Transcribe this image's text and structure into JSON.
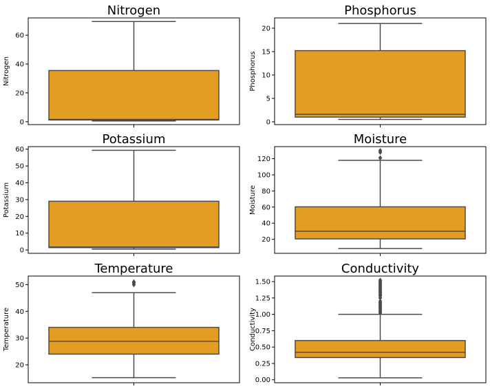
{
  "colors": {
    "box_fill": "#e39d22",
    "line": "#4a4a4a",
    "axes": "#000000",
    "background": "#ffffff"
  },
  "chart_data": [
    {
      "type": "box",
      "title": "Nitrogen",
      "ylabel": "Nitrogen",
      "ylim": [
        -2,
        72
      ],
      "yticks": [
        0,
        20,
        40,
        60
      ],
      "tick_labels": [
        "0",
        "20",
        "40",
        "60"
      ],
      "whisker_low": 0.5,
      "q1": 1.2,
      "median": 1.6,
      "q3": 35.5,
      "whisker_high": 69.5,
      "outliers": []
    },
    {
      "type": "box",
      "title": "Phosphorus",
      "ylabel": "Phosphorus",
      "ylim": [
        -0.6,
        22.2
      ],
      "yticks": [
        0,
        5,
        10,
        15,
        20
      ],
      "tick_labels": [
        "0",
        "5",
        "10",
        "15",
        "20"
      ],
      "whisker_low": 0.5,
      "q1": 1.0,
      "median": 1.6,
      "q3": 15.2,
      "whisker_high": 21.0,
      "outliers": []
    },
    {
      "type": "box",
      "title": "Potassium",
      "ylabel": "Potassium",
      "ylim": [
        -2,
        61.5
      ],
      "yticks": [
        0,
        10,
        20,
        30,
        40,
        50,
        60
      ],
      "tick_labels": [
        "0",
        "10",
        "20",
        "30",
        "40",
        "50",
        "60"
      ],
      "whisker_low": 0.5,
      "q1": 1.4,
      "median": 1.8,
      "q3": 29.0,
      "whisker_high": 59.3,
      "outliers": []
    },
    {
      "type": "box",
      "title": "Moisture",
      "ylabel": "Moisture",
      "ylim": [
        2.6,
        135
      ],
      "yticks": [
        20,
        40,
        60,
        80,
        100,
        120
      ],
      "tick_labels": [
        "20",
        "40",
        "60",
        "80",
        "100",
        "120"
      ],
      "whisker_low": 8.6,
      "q1": 20.5,
      "median": 30.0,
      "q3": 60.3,
      "whisker_high": 118.0,
      "outliers": [
        121.0,
        128.0,
        130.0
      ]
    },
    {
      "type": "box",
      "title": "Temperature",
      "ylabel": "Temperature",
      "ylim": [
        13.3,
        53.2
      ],
      "yticks": [
        20,
        30,
        40,
        50
      ],
      "tick_labels": [
        "20",
        "30",
        "40",
        "50"
      ],
      "whisker_low": 15.2,
      "q1": 24.0,
      "median": 28.8,
      "q3": 34.0,
      "whisker_high": 47.0,
      "outliers": [
        50.0,
        50.6,
        51.0
      ]
    },
    {
      "type": "box",
      "title": "Conductivity",
      "ylabel": "Conductivity",
      "ylim": [
        -0.045,
        1.585
      ],
      "yticks": [
        0,
        0.25,
        0.5,
        0.75,
        1.0,
        1.25,
        1.5
      ],
      "tick_labels": [
        "0.00",
        "0.25",
        "0.50",
        "0.75",
        "1.00",
        "1.25",
        "1.50"
      ],
      "whisker_low": 0.03,
      "q1": 0.34,
      "median": 0.42,
      "q3": 0.6,
      "whisker_high": 1.0,
      "outliers": [
        1.02,
        1.04,
        1.06,
        1.08,
        1.1,
        1.12,
        1.14,
        1.16,
        1.18,
        1.2,
        1.25,
        1.28,
        1.3,
        1.32,
        1.34,
        1.36,
        1.38,
        1.4,
        1.42,
        1.44,
        1.46,
        1.48,
        1.5,
        1.52
      ]
    }
  ]
}
